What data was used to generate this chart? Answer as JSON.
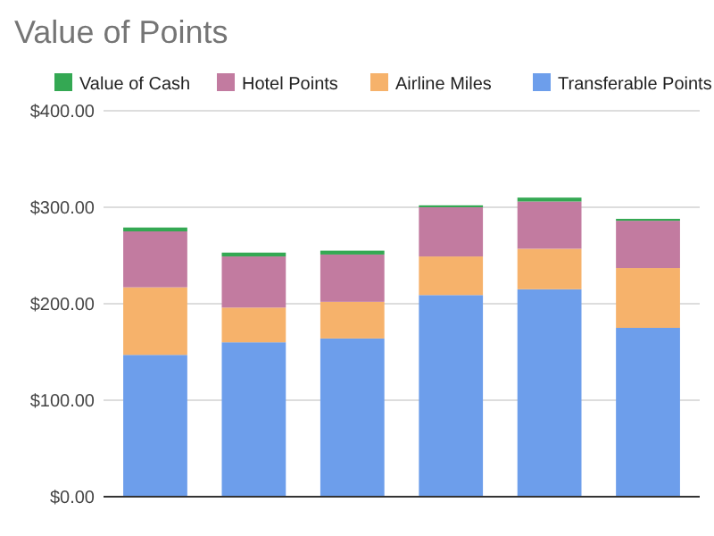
{
  "chart_data": {
    "type": "bar",
    "title": "Value of Points",
    "categories": [
      null,
      null,
      null,
      null,
      null,
      null
    ],
    "stacked": true,
    "series": [
      {
        "name": "Transferable Points",
        "color": "#6d9eeb",
        "values": [
          147,
          160,
          164,
          209,
          215,
          175
        ]
      },
      {
        "name": "Airline Miles",
        "color": "#f6b26b",
        "values": [
          70,
          36,
          38,
          40,
          42,
          62
        ]
      },
      {
        "name": "Hotel Points",
        "color": "#c27ba0",
        "values": [
          58,
          53,
          49,
          51,
          49,
          49
        ]
      },
      {
        "name": "Value of Cash",
        "color": "#34a853",
        "values": [
          4,
          4,
          4,
          2,
          4,
          2
        ]
      }
    ],
    "ylim": [
      0,
      400
    ],
    "yticks": [
      {
        "value": 0,
        "label": "$0.00"
      },
      {
        "value": 100,
        "label": "$100.00"
      },
      {
        "value": 200,
        "label": "$200.00"
      },
      {
        "value": 300,
        "label": "$300.00"
      },
      {
        "value": 400,
        "label": "$400.00"
      }
    ],
    "grid": "y",
    "legend": "top"
  }
}
